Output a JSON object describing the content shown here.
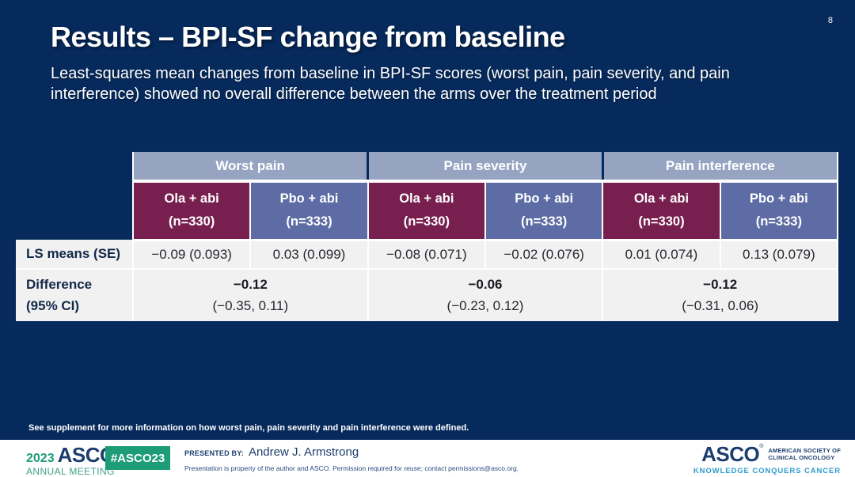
{
  "slide": {
    "page_number": "8",
    "title": "Results – BPI-SF change from baseline",
    "subtitle": "Least-squares mean changes from baseline in BPI-SF scores (worst pain, pain severity, and pain interference) showed no overall difference between the arms over the treatment period",
    "footnote": "See supplement for more information on how worst pain, pain severity and pain interference were defined."
  },
  "table": {
    "groups": [
      {
        "label": "Worst pain"
      },
      {
        "label": "Pain severity"
      },
      {
        "label": "Pain interference"
      }
    ],
    "arms": [
      {
        "label": "Ola + abi",
        "n": "(n=330)"
      },
      {
        "label": "Pbo + abi",
        "n": "(n=333)"
      },
      {
        "label": "Ola + abi",
        "n": "(n=330)"
      },
      {
        "label": "Pbo + abi",
        "n": "(n=333)"
      },
      {
        "label": "Ola + abi",
        "n": "(n=330)"
      },
      {
        "label": "Pbo + abi",
        "n": "(n=333)"
      }
    ],
    "rows": {
      "ls_means": {
        "label": "LS means (SE)",
        "values": [
          "−0.09 (0.093)",
          "0.03 (0.099)",
          "−0.08 (0.071)",
          "−0.02 (0.076)",
          "0.01 (0.074)",
          "0.13 (0.079)"
        ]
      },
      "difference": {
        "label_line1": "Difference",
        "label_line2": "(95% CI)",
        "values": [
          {
            "diff": "−0.12",
            "ci": "(−0.35, 0.11)"
          },
          {
            "diff": "−0.06",
            "ci": "(−0.23, 0.12)"
          },
          {
            "diff": "−0.12",
            "ci": "(−0.31, 0.06)"
          }
        ]
      }
    }
  },
  "footer": {
    "meeting_year": "2023",
    "meeting_org": "ASCO",
    "meeting_reg": "®",
    "meeting_sub": "ANNUAL MEETING",
    "hashtag": "#ASCO23",
    "presented_by_label": "PRESENTED BY:",
    "presenter": "Andrew J. Armstrong",
    "disclaimer": "Presentation is property of the author and ASCO. Permission required for reuse; contact permissions@asco.org.",
    "org_name": "ASCO",
    "org_reg": "®",
    "society_line1": "AMERICAN SOCIETY OF",
    "society_line2": "CLINICAL ONCOLOGY",
    "tagline": "KNOWLEDGE CONQUERS CANCER"
  },
  "colors": {
    "background": "#062A5C",
    "group_header": "#96A4C2",
    "ola_arm": "#77204F",
    "pbo_arm": "#5D6CA4",
    "row_bg": "#F1F1F2",
    "label_navy": "#132948",
    "badge_green": "#1C9C77",
    "asco_navy": "#1C3E6E",
    "tagline_blue": "#2E9BD0"
  }
}
